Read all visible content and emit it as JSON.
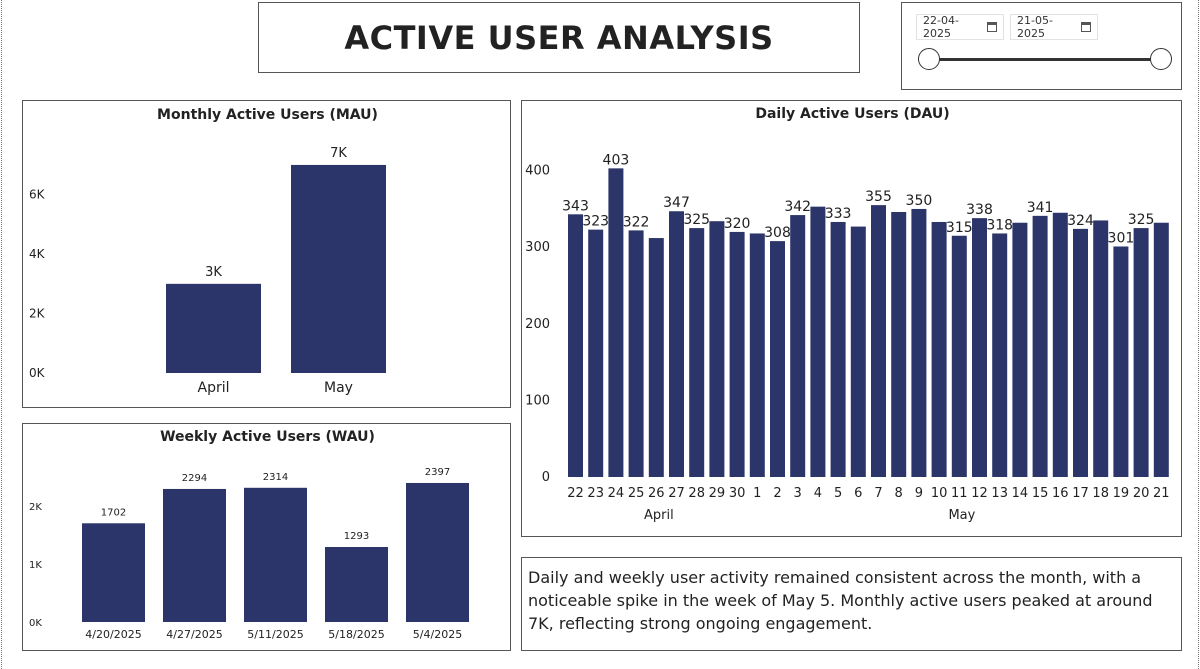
{
  "report": {
    "title": "ACTIVE USER ANALYSIS",
    "date_range": {
      "start": "22-04-2025",
      "end": "21-05-2025"
    },
    "summary": "Daily and weekly user activity remained consistent across the month, with a noticeable spike in the week of May 5. Monthly active users peaked at around 7K, reflecting strong ongoing engagement."
  },
  "colors": {
    "bar": "#2c3569",
    "text": "#222222",
    "border": "#555555"
  },
  "chart_data": [
    {
      "id": "mau",
      "type": "bar",
      "title": "Monthly Active Users (MAU)",
      "categories": [
        "April",
        "May"
      ],
      "values": [
        3000,
        7000
      ],
      "data_labels": [
        "3K",
        "7K"
      ],
      "ylim": [
        0,
        7200
      ],
      "yticks": [
        0,
        2000,
        4000,
        6000
      ],
      "ytick_labels": [
        "0K",
        "2K",
        "4K",
        "6K"
      ],
      "xlabel": "",
      "ylabel": ""
    },
    {
      "id": "wau",
      "type": "bar",
      "title": "Weekly Active Users (WAU)",
      "categories": [
        "4/20/2025",
        "4/27/2025",
        "5/11/2025",
        "5/18/2025",
        "5/4/2025"
      ],
      "values": [
        1702,
        2294,
        2314,
        1293,
        2397
      ],
      "data_labels": [
        "1702",
        "2294",
        "2314",
        "1293",
        "2397"
      ],
      "ylim": [
        0,
        2500
      ],
      "yticks": [
        0,
        1000,
        2000
      ],
      "ytick_labels": [
        "0K",
        "1K",
        "2K"
      ],
      "xlabel": "",
      "ylabel": ""
    },
    {
      "id": "dau",
      "type": "bar",
      "title": "Daily Active Users (DAU)",
      "categories": [
        "22",
        "23",
        "24",
        "25",
        "26",
        "27",
        "28",
        "29",
        "30",
        "1",
        "2",
        "3",
        "4",
        "5",
        "6",
        "7",
        "8",
        "9",
        "10",
        "11",
        "12",
        "13",
        "14",
        "15",
        "16",
        "17",
        "18",
        "19",
        "20",
        "21"
      ],
      "values": [
        343,
        323,
        403,
        322,
        312,
        347,
        325,
        334,
        320,
        318,
        308,
        342,
        353,
        333,
        327,
        355,
        346,
        350,
        333,
        315,
        338,
        318,
        332,
        341,
        345,
        324,
        335,
        301,
        325,
        332
      ],
      "data_labels": [
        "343",
        "323",
        "403",
        "322",
        "",
        "347",
        "325",
        "",
        "320",
        "",
        "308",
        "342",
        "",
        "333",
        "",
        "355",
        "",
        "350",
        "",
        "315",
        "338",
        "318",
        "",
        "341",
        "",
        "324",
        "",
        "301",
        "325",
        ""
      ],
      "ylim": [
        0,
        410
      ],
      "yticks": [
        0,
        100,
        200,
        300,
        400
      ],
      "ytick_labels": [
        "0",
        "100",
        "200",
        "300",
        "400"
      ],
      "groups": [
        {
          "label": "April",
          "start": 0,
          "end": 8
        },
        {
          "label": "May",
          "start": 9,
          "end": 29
        }
      ],
      "xlabel": "",
      "ylabel": ""
    }
  ]
}
